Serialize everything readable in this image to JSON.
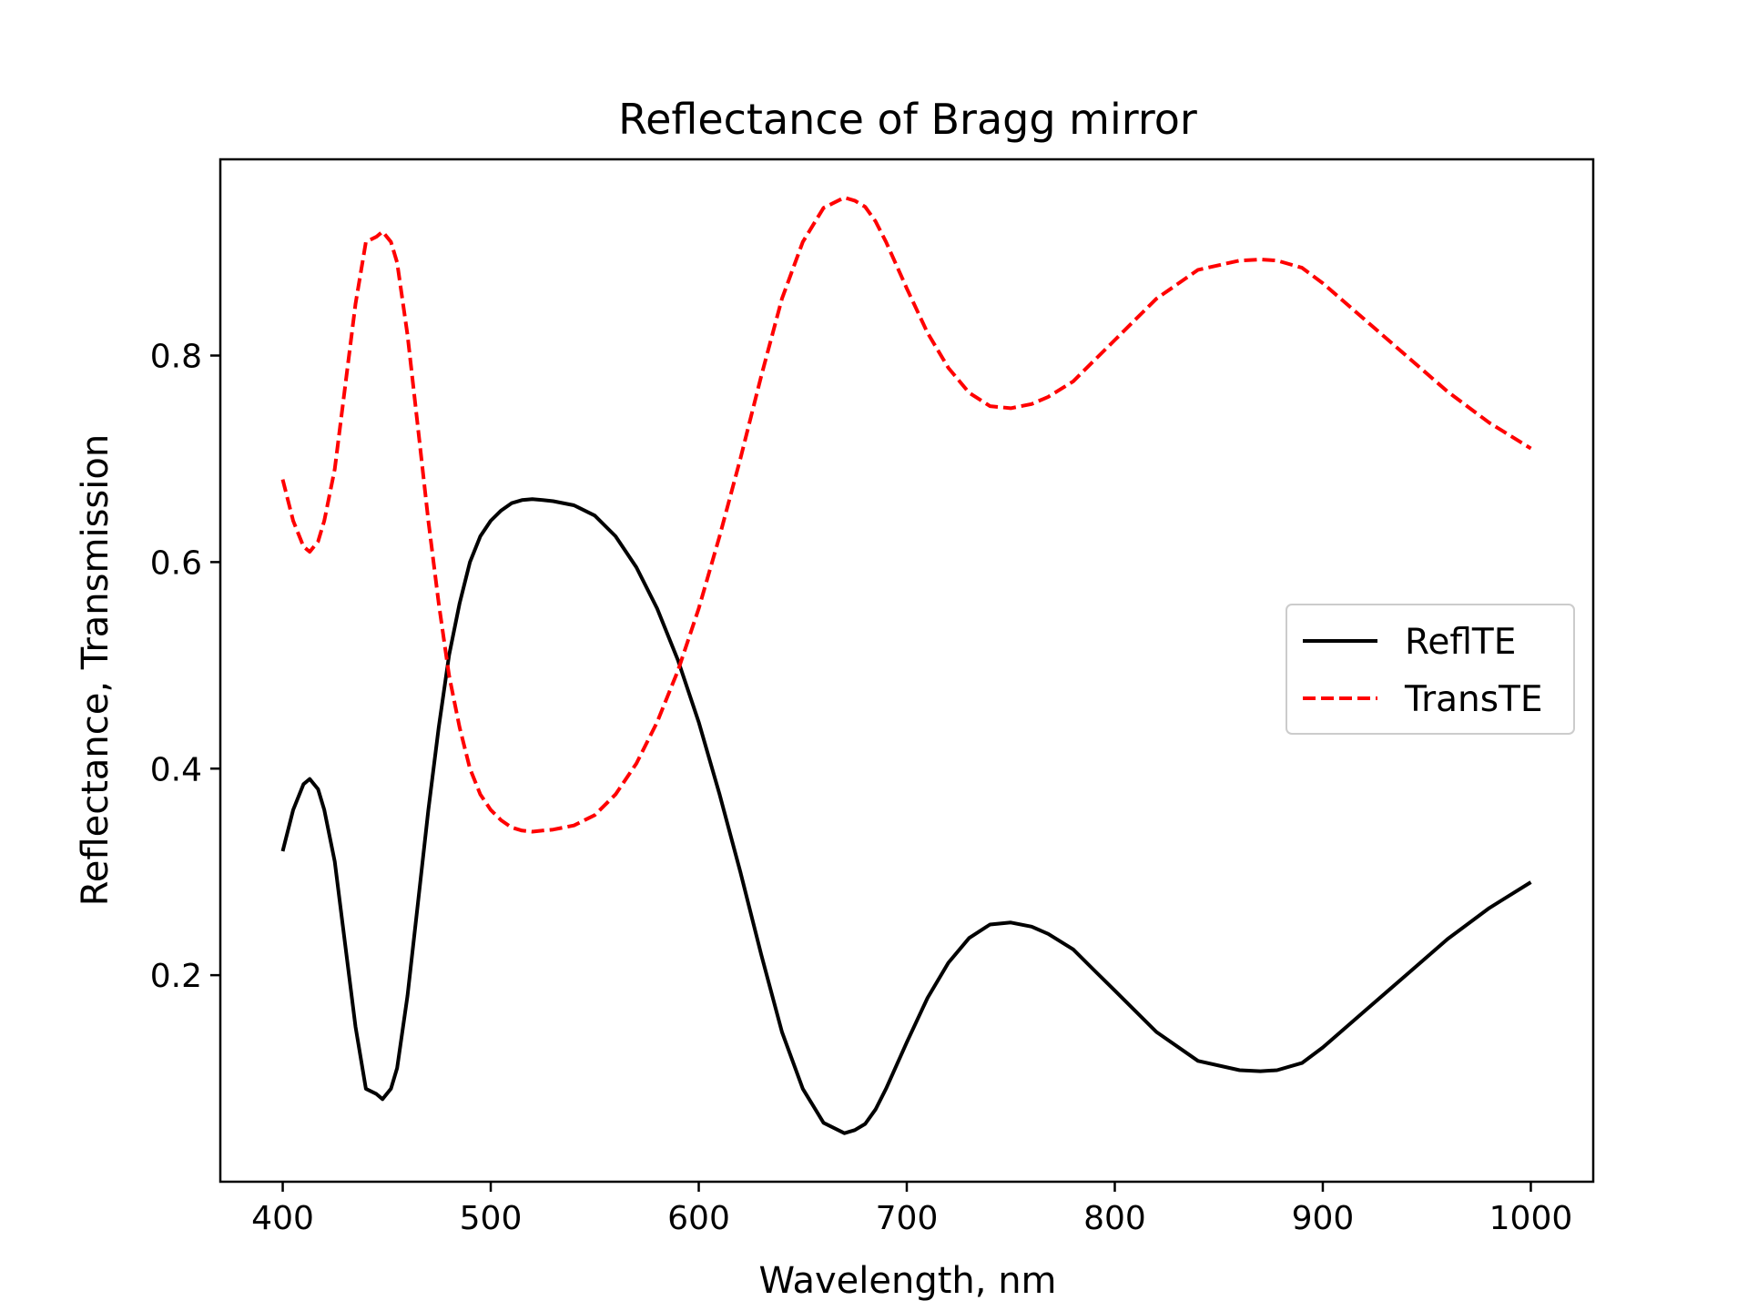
{
  "chart_data": {
    "type": "line",
    "title": "Reflectance of Bragg mirror",
    "xlabel": "Wavelength, nm",
    "ylabel": "Reflectance, Transmission",
    "xlim": [
      370,
      1030
    ],
    "ylim": [
      0.0,
      0.99
    ],
    "xticks": [
      400,
      500,
      600,
      700,
      800,
      900,
      1000
    ],
    "xtick_labels": [
      "400",
      "500",
      "600",
      "700",
      "800",
      "900",
      "1000"
    ],
    "yticks": [
      0.2,
      0.4,
      0.6,
      0.8
    ],
    "ytick_labels": [
      "0.2",
      "0.4",
      "0.6",
      "0.8"
    ],
    "grid": false,
    "legend_position": "center-right",
    "x": [
      400,
      405,
      410,
      413,
      417,
      420,
      425,
      430,
      435,
      440,
      445,
      448,
      452,
      455,
      460,
      465,
      470,
      475,
      480,
      485,
      490,
      495,
      500,
      505,
      510,
      515,
      520,
      525,
      530,
      540,
      550,
      560,
      570,
      580,
      590,
      600,
      610,
      620,
      630,
      640,
      650,
      660,
      670,
      675,
      680,
      685,
      690,
      700,
      710,
      720,
      730,
      740,
      750,
      760,
      768,
      780,
      790,
      800,
      820,
      840,
      860,
      870,
      878,
      890,
      900,
      920,
      940,
      960,
      980,
      1000
    ],
    "series": [
      {
        "name": "ReflTE",
        "color": "#000000",
        "dash": "solid",
        "values": [
          0.32,
          0.36,
          0.385,
          0.39,
          0.38,
          0.36,
          0.31,
          0.23,
          0.15,
          0.09,
          0.085,
          0.08,
          0.09,
          0.11,
          0.18,
          0.27,
          0.36,
          0.44,
          0.51,
          0.56,
          0.6,
          0.625,
          0.64,
          0.65,
          0.657,
          0.66,
          0.661,
          0.66,
          0.659,
          0.655,
          0.645,
          0.625,
          0.595,
          0.555,
          0.505,
          0.445,
          0.375,
          0.3,
          0.22,
          0.145,
          0.09,
          0.057,
          0.047,
          0.05,
          0.056,
          0.07,
          0.09,
          0.135,
          0.178,
          0.212,
          0.236,
          0.249,
          0.251,
          0.247,
          0.24,
          0.225,
          0.205,
          0.185,
          0.145,
          0.117,
          0.108,
          0.107,
          0.108,
          0.115,
          0.13,
          0.165,
          0.2,
          0.235,
          0.265,
          0.29
        ]
      },
      {
        "name": "TransTE",
        "color": "#ff0000",
        "dash": "dashed",
        "values": [
          0.68,
          0.64,
          0.615,
          0.61,
          0.62,
          0.64,
          0.69,
          0.77,
          0.85,
          0.91,
          0.915,
          0.92,
          0.91,
          0.89,
          0.82,
          0.73,
          0.64,
          0.56,
          0.49,
          0.44,
          0.4,
          0.375,
          0.36,
          0.35,
          0.343,
          0.34,
          0.339,
          0.34,
          0.341,
          0.345,
          0.355,
          0.375,
          0.405,
          0.445,
          0.495,
          0.555,
          0.625,
          0.7,
          0.78,
          0.855,
          0.91,
          0.943,
          0.953,
          0.95,
          0.944,
          0.93,
          0.91,
          0.865,
          0.822,
          0.788,
          0.764,
          0.751,
          0.749,
          0.753,
          0.76,
          0.775,
          0.795,
          0.815,
          0.855,
          0.883,
          0.892,
          0.893,
          0.892,
          0.885,
          0.87,
          0.835,
          0.8,
          0.765,
          0.735,
          0.71
        ]
      }
    ]
  }
}
